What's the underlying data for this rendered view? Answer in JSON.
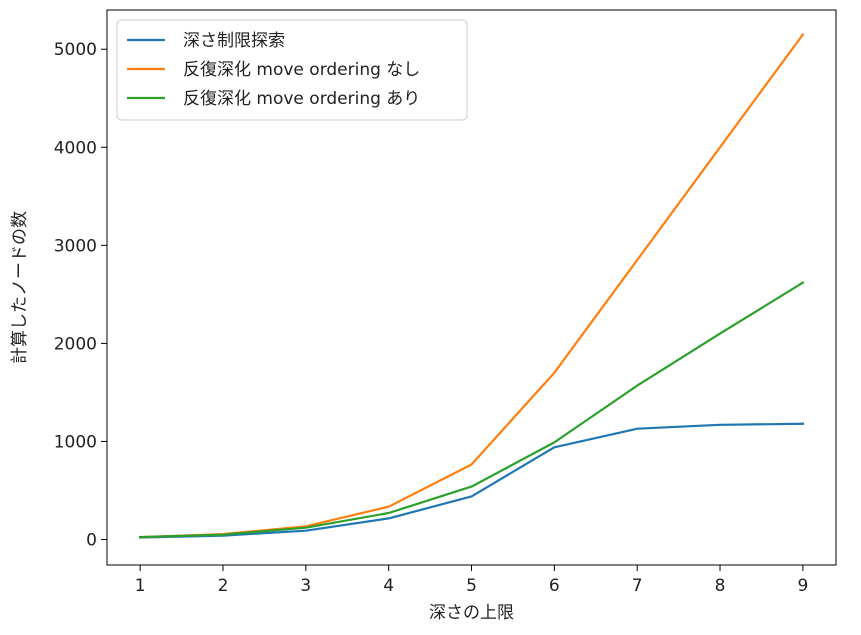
{
  "chart_data": {
    "type": "line",
    "title": "",
    "xlabel": "深さの上限",
    "ylabel": "計算したノードの数",
    "x": [
      1,
      2,
      3,
      4,
      5,
      6,
      7,
      8,
      9
    ],
    "xlim": [
      0.6,
      9.4
    ],
    "ylim": [
      -260,
      5400
    ],
    "x_ticks": [
      1,
      2,
      3,
      4,
      5,
      6,
      7,
      8,
      9
    ],
    "y_ticks": [
      0,
      1000,
      2000,
      3000,
      4000,
      5000
    ],
    "grid": false,
    "legend_position": "top-left",
    "series": [
      {
        "name": "深さ制限探索",
        "color": "#1f77b4",
        "values": [
          20,
          40,
          90,
          215,
          440,
          940,
          1130,
          1170,
          1180
        ]
      },
      {
        "name": "反復深化 move ordering なし",
        "color": "#ff7f0e",
        "values": [
          25,
          55,
          135,
          335,
          765,
          1700,
          2850,
          4000,
          5150
        ]
      },
      {
        "name": "反復深化 move ordering あり",
        "color": "#2ca02c",
        "values": [
          25,
          50,
          120,
          270,
          540,
          990,
          1570,
          2100,
          2620
        ]
      }
    ]
  }
}
